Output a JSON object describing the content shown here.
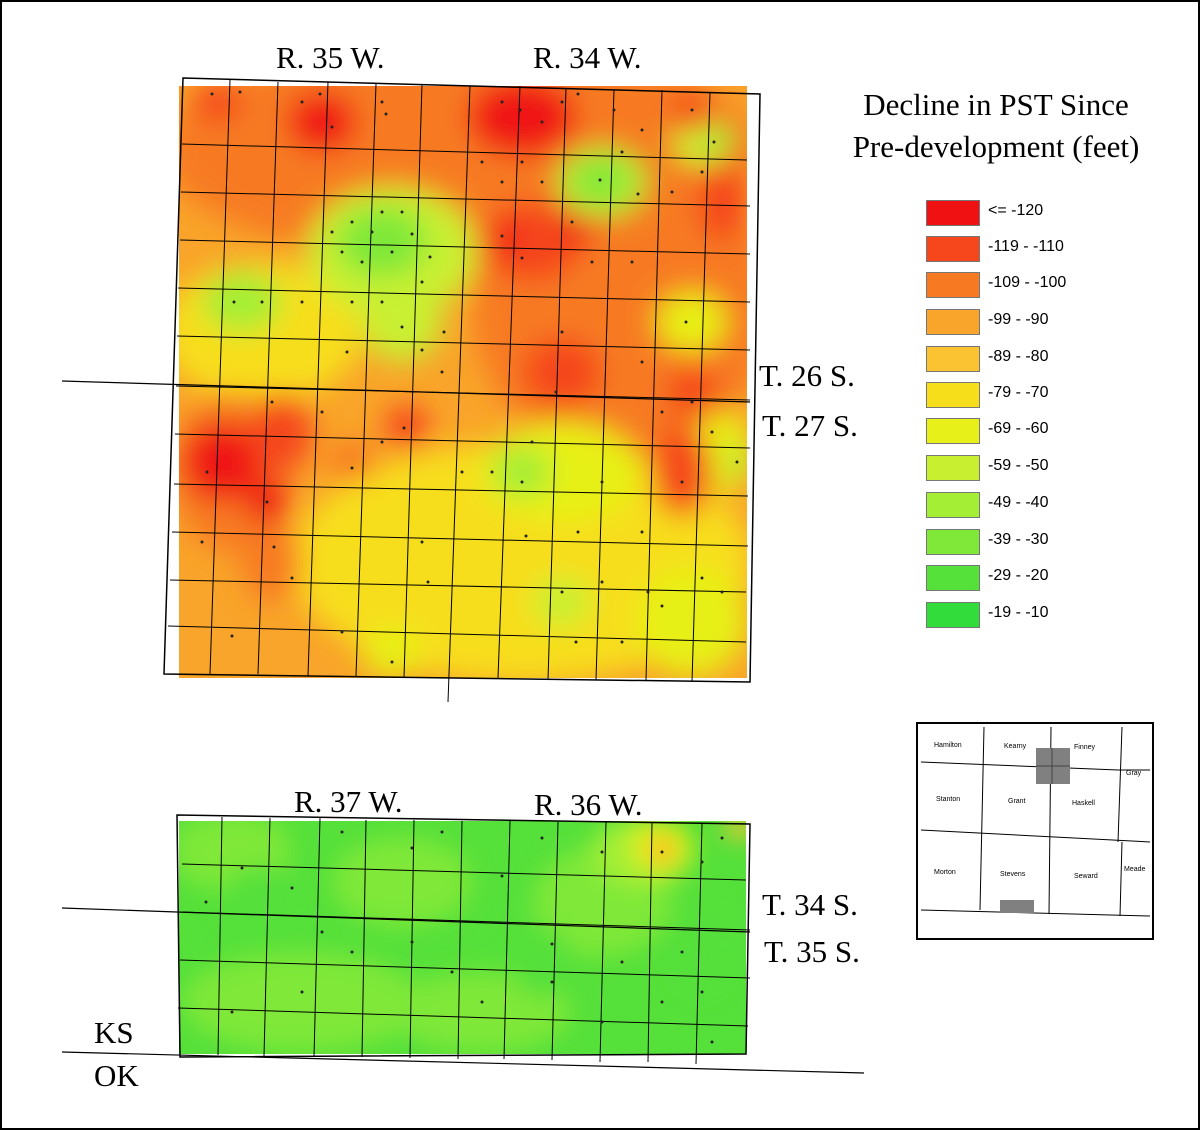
{
  "title": "Decline in PST Since Pre-development (feet)",
  "title_lines": [
    "Decline in PST Since",
    "Pre-development (feet)"
  ],
  "colors": {
    "c120": "#f01212",
    "c110": "#f5461c",
    "c100": "#f77a22",
    "c90": "#f9a42a",
    "c80": "#fbc332",
    "c70": "#f7de1a",
    "c60": "#e7f018",
    "c50": "#c9f030",
    "c40": "#a4ee36",
    "c30": "#7fe838",
    "c20": "#55e03a",
    "c10": "#32dc3a"
  },
  "legend": [
    {
      "label": "<= -120",
      "color": "#f01212"
    },
    {
      "label": "-119 - -110",
      "color": "#f5461c"
    },
    {
      "label": "-109 - -100",
      "color": "#f77a22"
    },
    {
      "label": "-99 - -90",
      "color": "#f9a42a"
    },
    {
      "label": "-89 - -80",
      "color": "#fbc332"
    },
    {
      "label": "-79 - -70",
      "color": "#f7de1a"
    },
    {
      "label": "-69 - -60",
      "color": "#e7f018"
    },
    {
      "label": "-59 - -50",
      "color": "#c9f030"
    },
    {
      "label": "-49 - -40",
      "color": "#a4ee36"
    },
    {
      "label": "-39 - -30",
      "color": "#7fe838"
    },
    {
      "label": "-29 - -20",
      "color": "#55e03a"
    },
    {
      "label": "-19 - -10",
      "color": "#32dc3a"
    }
  ],
  "north_map": {
    "ranges": [
      "R. 35 W.",
      "R. 34 W."
    ],
    "townships": [
      "T. 26 S.",
      "T. 27 S."
    ]
  },
  "south_map": {
    "ranges": [
      "R. 37 W.",
      "R. 36 W."
    ],
    "townships": [
      "T. 34 S.",
      "T. 35 S."
    ],
    "state_labels": [
      "KS",
      "OK"
    ]
  },
  "inset_counties": [
    "Hamilton",
    "Kearny",
    "Finney",
    "Gray",
    "Stanton",
    "Grant",
    "Haskell",
    "Morton",
    "Stevens",
    "Seward",
    "Meade"
  ]
}
